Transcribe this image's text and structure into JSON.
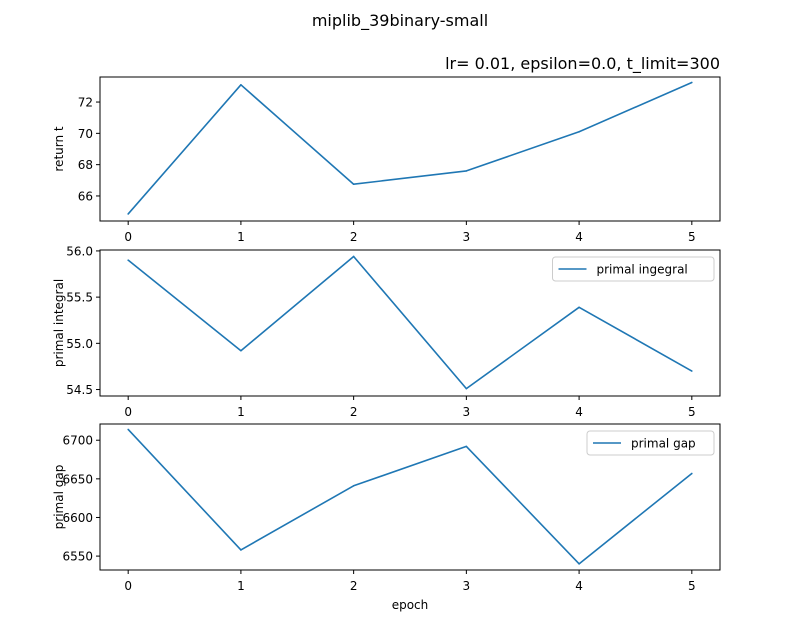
{
  "figure": {
    "suptitle": "miplib_39binary-small"
  },
  "colors": {
    "series": "#1f77b4"
  },
  "chart_data": [
    {
      "type": "line",
      "title": "lr= 0.01, epsilon=0.0, t_limit=300",
      "xlabel": "",
      "ylabel": "return t",
      "x": [
        0,
        1,
        2,
        3,
        4,
        5
      ],
      "xticks": [
        "0",
        "1",
        "2",
        "3",
        "4",
        "5"
      ],
      "xlim": [
        -0.25,
        5.25
      ],
      "yticks": [
        "66",
        "68",
        "70",
        "72"
      ],
      "ytick_values": [
        66,
        68,
        70,
        72
      ],
      "ylim": [
        64.4,
        73.6
      ],
      "legend": false,
      "series": [
        {
          "values": [
            64.85,
            73.1,
            66.75,
            67.6,
            70.1,
            73.25
          ]
        }
      ]
    },
    {
      "type": "line",
      "title": "",
      "xlabel": "",
      "ylabel": "primal integral",
      "x": [
        0,
        1,
        2,
        3,
        4,
        5
      ],
      "xticks": [
        "0",
        "1",
        "2",
        "3",
        "4",
        "5"
      ],
      "xlim": [
        -0.25,
        5.25
      ],
      "yticks": [
        "54.5",
        "55.0",
        "55.5",
        "56.0"
      ],
      "ytick_values": [
        54.5,
        55.0,
        55.5,
        56.0
      ],
      "ylim": [
        54.43,
        56.01
      ],
      "legend": "upper right",
      "series": [
        {
          "name": "primal ingegral",
          "values": [
            55.9,
            54.92,
            55.94,
            54.51,
            55.39,
            54.7
          ]
        }
      ]
    },
    {
      "type": "line",
      "title": "",
      "xlabel": "epoch",
      "ylabel": "primal gap",
      "x": [
        0,
        1,
        2,
        3,
        4,
        5
      ],
      "xticks": [
        "0",
        "1",
        "2",
        "3",
        "4",
        "5"
      ],
      "xlim": [
        -0.25,
        5.25
      ],
      "yticks": [
        "6550",
        "6600",
        "6650",
        "6700"
      ],
      "ytick_values": [
        6550,
        6600,
        6650,
        6700
      ],
      "ylim": [
        6532,
        6721
      ],
      "legend": "upper right",
      "series": [
        {
          "name": "primal gap",
          "values": [
            6714,
            6558,
            6641,
            6692,
            6540,
            6657
          ]
        }
      ]
    }
  ]
}
